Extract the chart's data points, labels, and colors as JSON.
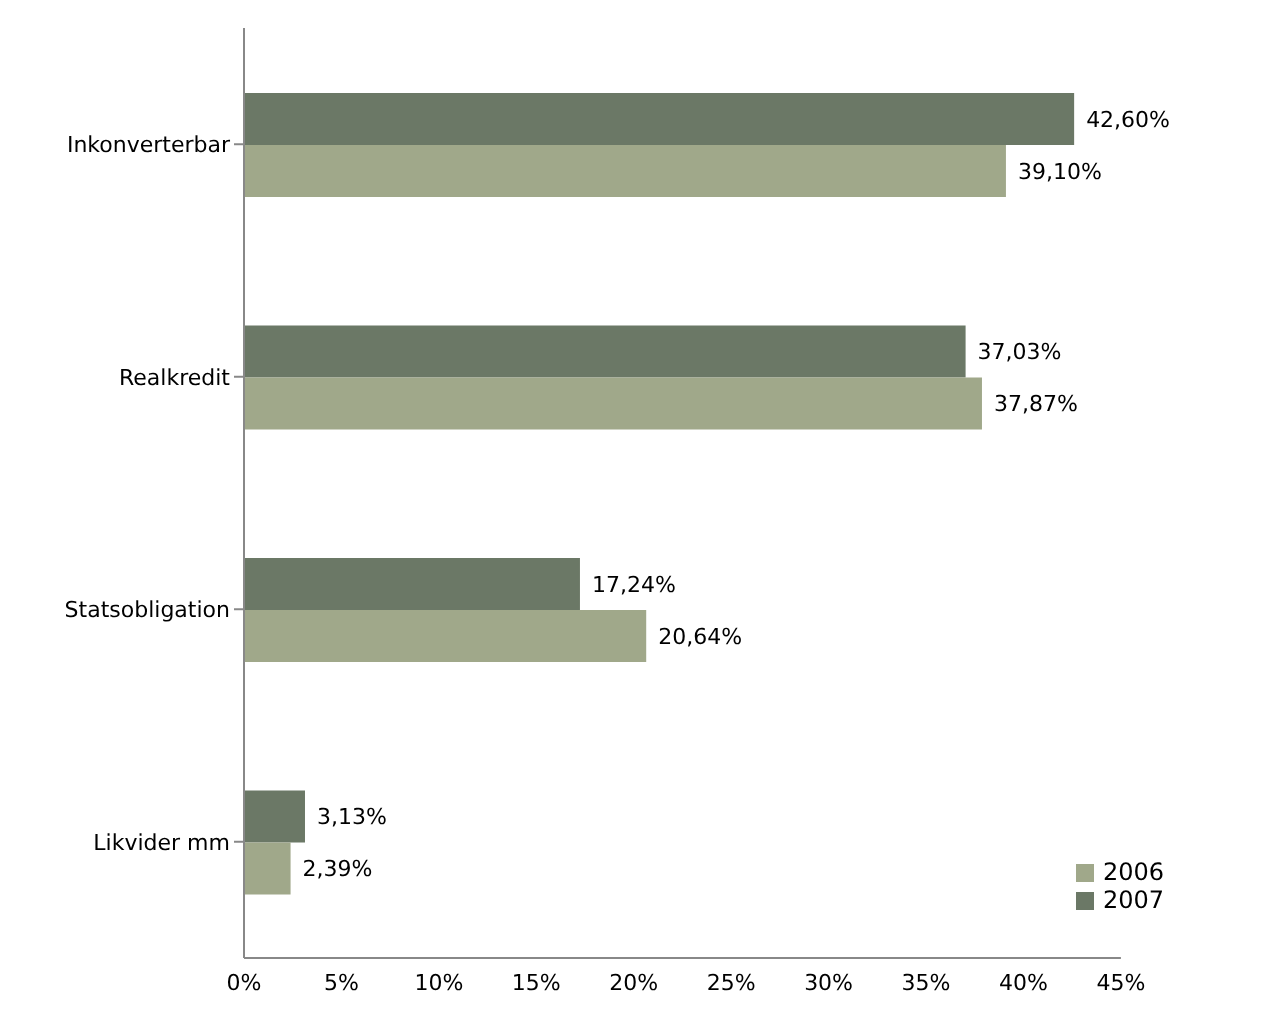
{
  "chart_data": {
    "type": "bar",
    "orientation": "horizontal",
    "categories": [
      "Inkonverterbar",
      "Realkredit",
      "Statsobligation",
      "Likvider mm"
    ],
    "series": [
      {
        "name": "2007",
        "color": "#6b7866",
        "values": [
          42.6,
          37.03,
          17.24,
          3.13
        ],
        "value_labels": [
          "42,60%",
          "37,03%",
          "17,24%",
          "3,13%"
        ]
      },
      {
        "name": "2006",
        "color": "#a0a88a",
        "values": [
          39.1,
          37.87,
          20.64,
          2.39
        ],
        "value_labels": [
          "39,10%",
          "37,87%",
          "20,64%",
          "2,39%"
        ]
      }
    ],
    "xlim": [
      0,
      45
    ],
    "xticks": [
      {
        "value": 0,
        "label": "0%"
      },
      {
        "value": 5,
        "label": "5%"
      },
      {
        "value": 10,
        "label": "10%"
      },
      {
        "value": 15,
        "label": "15%"
      },
      {
        "value": 20,
        "label": "20%"
      },
      {
        "value": 25,
        "label": "25%"
      },
      {
        "value": 30,
        "label": "30%"
      },
      {
        "value": 35,
        "label": "35%"
      },
      {
        "value": 40,
        "label": "40%"
      },
      {
        "value": 45,
        "label": "45%"
      }
    ],
    "grid": false,
    "legend": "bottom right"
  }
}
